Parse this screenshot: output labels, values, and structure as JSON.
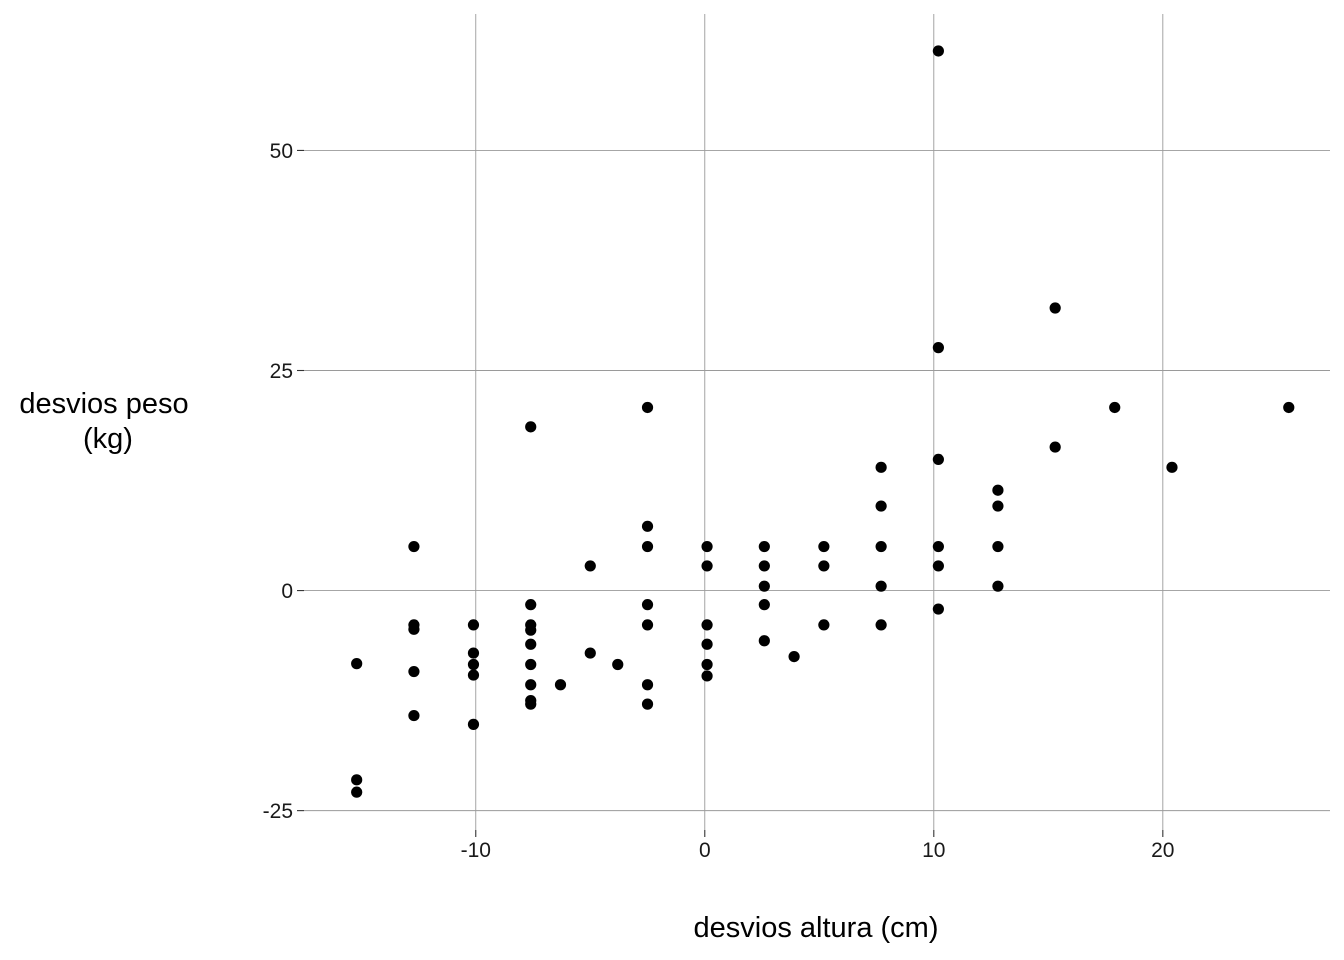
{
  "chart_data": {
    "type": "scatter",
    "xlabel": "desvios altura (cm)",
    "ylabel_lines": [
      "desvios peso",
      "(kg)"
    ],
    "xlim": [
      -17.5,
      27.3
    ],
    "ylim": [
      -27.2,
      65.5
    ],
    "x_ticks": [
      -10,
      0,
      10,
      20
    ],
    "x_tick_labels": [
      "-10",
      "0",
      "10",
      "20"
    ],
    "y_ticks": [
      -25,
      0,
      25,
      50
    ],
    "y_tick_labels": [
      "-25",
      "0",
      "25",
      "50"
    ],
    "grid": true,
    "legend": "none",
    "colors": {
      "point": "#000000",
      "grid": "#9a9a9a",
      "background": "#ffffff"
    },
    "points": [
      [
        -15.2,
        -8.3
      ],
      [
        -15.2,
        -21.5
      ],
      [
        -15.2,
        -22.9
      ],
      [
        -12.7,
        5.0
      ],
      [
        -12.7,
        -3.9
      ],
      [
        -12.7,
        -4.4
      ],
      [
        -12.7,
        -9.2
      ],
      [
        -12.7,
        -14.2
      ],
      [
        -10.1,
        -3.9
      ],
      [
        -10.1,
        -7.1
      ],
      [
        -10.1,
        -8.4
      ],
      [
        -10.1,
        -9.6
      ],
      [
        -10.1,
        -15.2
      ],
      [
        -7.6,
        18.6
      ],
      [
        -7.6,
        -1.6
      ],
      [
        -7.6,
        -3.9
      ],
      [
        -7.6,
        -4.5
      ],
      [
        -7.6,
        -6.1
      ],
      [
        -7.6,
        -8.4
      ],
      [
        -7.6,
        -10.7
      ],
      [
        -7.6,
        -12.5
      ],
      [
        -7.6,
        -12.9
      ],
      [
        -6.3,
        -10.7
      ],
      [
        -5.0,
        2.8
      ],
      [
        -5.0,
        -7.1
      ],
      [
        -3.8,
        -8.4
      ],
      [
        -2.5,
        20.8
      ],
      [
        -2.5,
        7.3
      ],
      [
        -2.5,
        5.0
      ],
      [
        -2.5,
        -1.6
      ],
      [
        -2.5,
        -3.9
      ],
      [
        -2.5,
        -10.7
      ],
      [
        -2.5,
        -12.9
      ],
      [
        0.1,
        5.0
      ],
      [
        0.1,
        2.8
      ],
      [
        0.1,
        -3.9
      ],
      [
        0.1,
        -6.1
      ],
      [
        0.1,
        -8.4
      ],
      [
        0.1,
        -9.7
      ],
      [
        2.6,
        5.0
      ],
      [
        2.6,
        2.8
      ],
      [
        2.6,
        0.5
      ],
      [
        2.6,
        -1.6
      ],
      [
        2.6,
        -5.7
      ],
      [
        3.9,
        -7.5
      ],
      [
        5.2,
        5.0
      ],
      [
        5.2,
        2.8
      ],
      [
        5.2,
        -3.9
      ],
      [
        7.7,
        14.0
      ],
      [
        7.7,
        9.6
      ],
      [
        7.7,
        5.0
      ],
      [
        7.7,
        0.5
      ],
      [
        7.7,
        -3.9
      ],
      [
        10.2,
        61.3
      ],
      [
        10.2,
        27.6
      ],
      [
        10.2,
        14.9
      ],
      [
        10.2,
        5.0
      ],
      [
        10.2,
        2.8
      ],
      [
        10.2,
        -2.1
      ],
      [
        12.8,
        11.4
      ],
      [
        12.8,
        9.6
      ],
      [
        12.8,
        5.0
      ],
      [
        12.8,
        0.5
      ],
      [
        15.3,
        32.1
      ],
      [
        15.3,
        16.3
      ],
      [
        17.9,
        20.8
      ],
      [
        20.4,
        14.0
      ],
      [
        25.5,
        20.8
      ]
    ]
  }
}
